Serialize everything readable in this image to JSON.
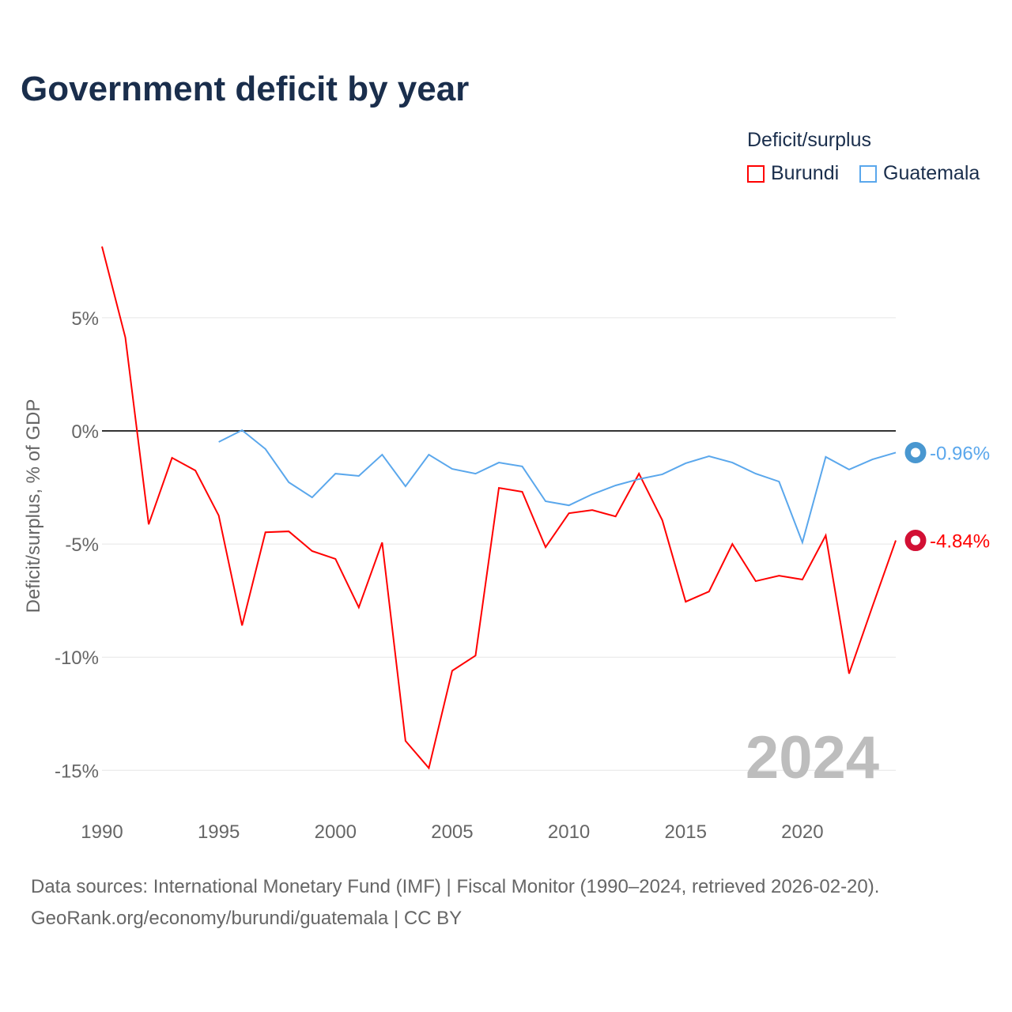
{
  "chart_data": {
    "type": "line",
    "title": "Government deficit by year",
    "ylabel": "Deficit/surplus, % of GDP",
    "xlabel": "",
    "ylim": [
      -17,
      9
    ],
    "xlim": [
      1990,
      2024
    ],
    "yticks": [
      5,
      0,
      -5,
      -10,
      -15
    ],
    "ytick_labels": [
      "5%",
      "0%",
      "-5%",
      "-10%",
      "-15%"
    ],
    "xticks": [
      1990,
      1995,
      2000,
      2005,
      2010,
      2015,
      2020
    ],
    "xtick_labels": [
      "1990",
      "1995",
      "2000",
      "2005",
      "2010",
      "2015",
      "2020"
    ],
    "legend_title": "Deficit/surplus",
    "legend_placement": "top-right",
    "year_label": "2024",
    "series": [
      {
        "name": "Burundi",
        "color": "#ff0000",
        "end_label": "-4.84%",
        "x": [
          1990,
          1991,
          1992,
          1993,
          1994,
          1995,
          1996,
          1997,
          1998,
          1999,
          2000,
          2001,
          2002,
          2003,
          2004,
          2005,
          2006,
          2007,
          2008,
          2009,
          2010,
          2011,
          2012,
          2013,
          2014,
          2015,
          2016,
          2017,
          2018,
          2019,
          2020,
          2021,
          2022,
          2023,
          2024
        ],
        "values": [
          8.15,
          4.13,
          -4.13,
          -1.19,
          -1.75,
          -3.74,
          -8.6,
          -4.48,
          -4.44,
          -5.31,
          -5.66,
          -7.8,
          -4.93,
          -13.7,
          -14.9,
          -10.6,
          -9.93,
          -2.52,
          -2.69,
          -5.14,
          -3.64,
          -3.5,
          -3.78,
          -1.89,
          -3.95,
          -7.55,
          -7.1,
          -5.0,
          -6.64,
          -6.4,
          -6.57,
          -4.62,
          -10.73,
          -7.76,
          -4.84
        ]
      },
      {
        "name": "Guatemala",
        "color": "#5aa7ec",
        "end_label": "-0.96%",
        "x": [
          1995,
          1996,
          1997,
          1998,
          1999,
          2000,
          2001,
          2002,
          2003,
          2004,
          2005,
          2006,
          2007,
          2008,
          2009,
          2010,
          2011,
          2012,
          2013,
          2014,
          2015,
          2016,
          2017,
          2018,
          2019,
          2020,
          2021,
          2022,
          2023,
          2024
        ],
        "values": [
          -0.49,
          0.03,
          -0.8,
          -2.27,
          -2.94,
          -1.89,
          -1.99,
          -1.05,
          -2.45,
          -1.05,
          -1.68,
          -1.89,
          -1.4,
          -1.57,
          -3.11,
          -3.29,
          -2.8,
          -2.41,
          -2.13,
          -1.92,
          -1.43,
          -1.12,
          -1.4,
          -1.89,
          -2.24,
          -4.93,
          -1.15,
          -1.71,
          -1.26,
          -0.96
        ]
      }
    ]
  },
  "footer": {
    "source": "Data sources: International Monetary Fund (IMF) | Fiscal Monitor (1990–2024, retrieved 2026-02-20).",
    "credit": "GeoRank.org/economy/burundi/guatemala | CC BY"
  }
}
